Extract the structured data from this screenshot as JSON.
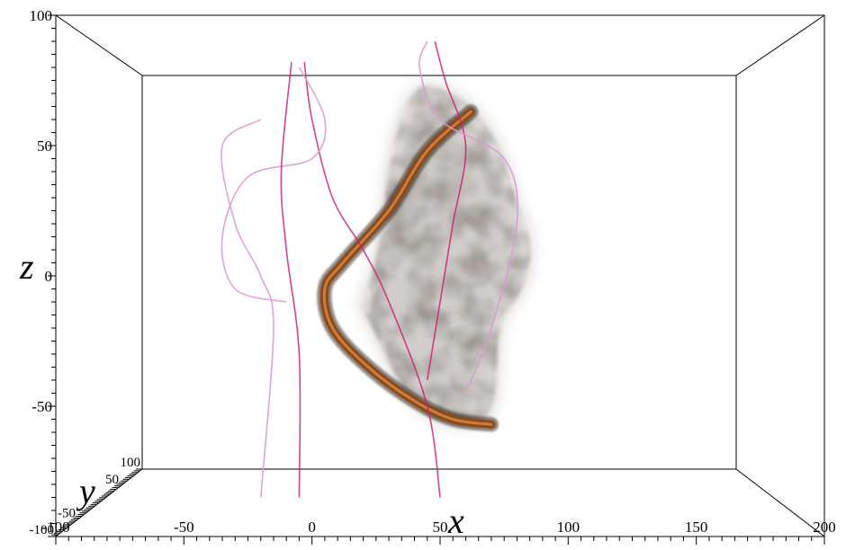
{
  "chart_data": {
    "type": "scatter",
    "subtype": "3d-volume-render-with-streamlines",
    "axes": {
      "x": {
        "label": "x",
        "range": [
          -100,
          200
        ],
        "ticks": [
          "-100",
          "-50",
          "0",
          "50",
          "100",
          "150",
          "200"
        ]
      },
      "y": {
        "label": "y",
        "range": [
          -100,
          100
        ],
        "ticks": [
          "-100",
          "-50",
          "50",
          "100"
        ]
      },
      "z": {
        "label": "z",
        "range": [
          -100,
          100
        ],
        "ticks": [
          "-50",
          "0",
          "50",
          "100"
        ]
      }
    },
    "grid": false,
    "bounding_box": true,
    "volume": {
      "description": "smoky grey volume cloud with a dark orange filament along an arc",
      "filament_arc_xz": [
        [
          62,
          63
        ],
        [
          45,
          48
        ],
        [
          30,
          25
        ],
        [
          12,
          5
        ],
        [
          5,
          -5
        ],
        [
          8,
          -20
        ],
        [
          22,
          -35
        ],
        [
          40,
          -48
        ],
        [
          55,
          -55
        ],
        [
          70,
          -57
        ]
      ]
    },
    "streamlines": [
      {
        "points_xz": [
          [
            -3,
            82
          ],
          [
            0,
            60
          ],
          [
            8,
            30
          ],
          [
            20,
            10
          ],
          [
            30,
            -10
          ],
          [
            45,
            -50
          ],
          [
            50,
            -85
          ]
        ]
      },
      {
        "points_xz": [
          [
            -5,
            80
          ],
          [
            5,
            60
          ],
          [
            0,
            45
          ],
          [
            -25,
            38
          ],
          [
            -35,
            15
          ],
          [
            -30,
            -5
          ],
          [
            -10,
            -10
          ]
        ]
      },
      {
        "points_xz": [
          [
            48,
            90
          ],
          [
            52,
            75
          ],
          [
            60,
            50
          ],
          [
            55,
            20
          ],
          [
            50,
            -10
          ],
          [
            45,
            -40
          ]
        ]
      },
      {
        "points_xz": [
          [
            45,
            90
          ],
          [
            42,
            80
          ],
          [
            50,
            60
          ],
          [
            75,
            45
          ],
          [
            80,
            20
          ],
          [
            70,
            -20
          ],
          [
            60,
            -45
          ]
        ]
      },
      {
        "points_xz": [
          [
            -8,
            82
          ],
          [
            -12,
            40
          ],
          [
            -10,
            10
          ],
          [
            -5,
            -30
          ],
          [
            -5,
            -85
          ]
        ]
      },
      {
        "points_xz": [
          [
            -20,
            60
          ],
          [
            -35,
            50
          ],
          [
            -30,
            20
          ],
          [
            -20,
            0
          ],
          [
            -15,
            -20
          ],
          [
            -20,
            -85
          ]
        ]
      }
    ],
    "xlabel": "x",
    "ylabel": "y",
    "zlabel": "z",
    "colors": {
      "streamline_strong": "#cc2277",
      "streamline_light": "#d99ad0",
      "filament": "#8a4a20",
      "box": "#000000"
    }
  }
}
